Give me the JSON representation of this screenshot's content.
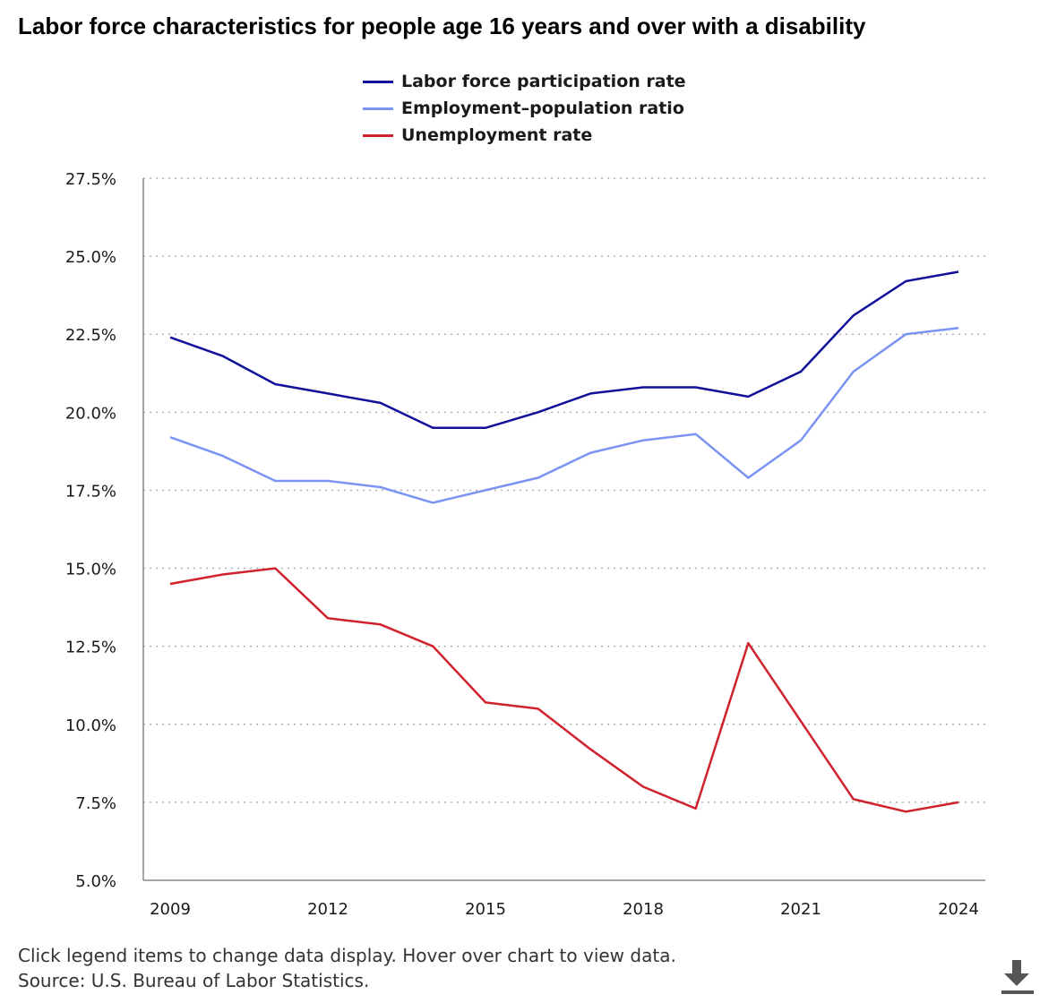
{
  "title": "Labor force characteristics for people age 16 years and over with a disability",
  "legend": [
    {
      "label": "Labor force participation rate",
      "color": "#10109a"
    },
    {
      "label": "Employment–population ratio",
      "color": "#7b93f2"
    },
    {
      "label": "Unemployment rate",
      "color": "#d0222c"
    }
  ],
  "chart_data": {
    "type": "line",
    "title": "Labor force characteristics for people age 16 years and over with a disability",
    "xlabel": "",
    "ylabel": "",
    "x": [
      2009,
      2010,
      2011,
      2012,
      2013,
      2014,
      2015,
      2016,
      2017,
      2018,
      2019,
      2020,
      2021,
      2022,
      2023,
      2024
    ],
    "x_ticks": [
      "2009",
      "2012",
      "2015",
      "2018",
      "2021",
      "2024"
    ],
    "y_ticks": [
      "27.5%",
      "25.0%",
      "22.5%",
      "20.0%",
      "17.5%",
      "15.0%",
      "12.5%",
      "10.0%",
      "7.5%",
      "5.0%"
    ],
    "ylim": [
      5.0,
      27.5
    ],
    "grid": true,
    "series": [
      {
        "name": "Labor force participation rate",
        "color": "#10109a",
        "values": [
          22.4,
          21.8,
          20.9,
          20.6,
          20.3,
          19.5,
          19.5,
          20.0,
          20.6,
          20.8,
          20.8,
          20.5,
          21.3,
          23.1,
          24.2,
          24.5
        ]
      },
      {
        "name": "Employment–population ratio",
        "color": "#7b93f2",
        "values": [
          19.2,
          18.6,
          17.8,
          17.8,
          17.6,
          17.1,
          17.5,
          17.9,
          18.7,
          19.1,
          19.3,
          17.9,
          19.1,
          21.3,
          22.5,
          22.7
        ]
      },
      {
        "name": "Unemployment rate",
        "color": "#d0222c",
        "values": [
          14.5,
          14.8,
          15.0,
          13.4,
          13.2,
          12.5,
          10.7,
          10.5,
          9.2,
          8.0,
          7.3,
          12.6,
          10.1,
          7.6,
          7.2,
          7.5
        ]
      }
    ]
  },
  "footer": {
    "instructions": "Click legend items to change data display. Hover over chart to view data.",
    "source": "Source: U.S. Bureau of Labor Statistics."
  },
  "icons": {
    "download": "download-icon"
  }
}
